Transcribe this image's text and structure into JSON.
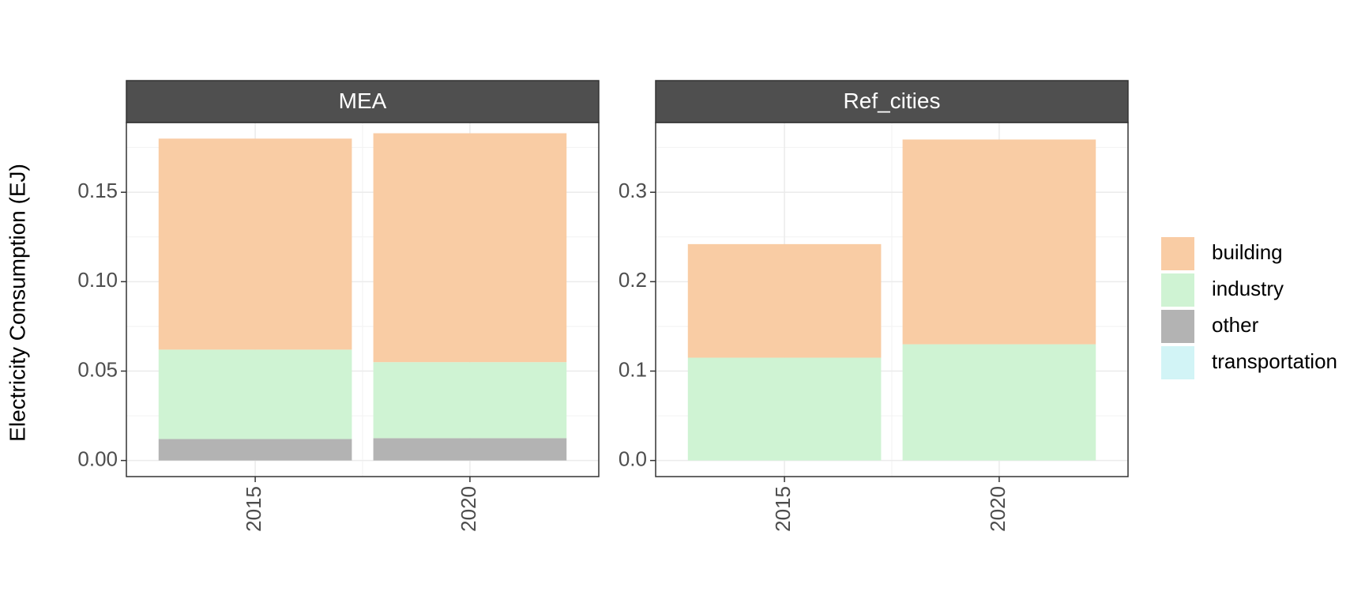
{
  "chart_data": {
    "type": "bar",
    "stacked": true,
    "ylabel": "Electricity Consumption (EJ)",
    "xlabel": "",
    "categories": [
      "2015",
      "2020"
    ],
    "legend": {
      "placement": "right",
      "entries": [
        {
          "name": "building",
          "color": "#f9cca4"
        },
        {
          "name": "industry",
          "color": "#cff3d3"
        },
        {
          "name": "other",
          "color": "#b3b3b3"
        },
        {
          "name": "transportation",
          "color": "#d2f4f6"
        }
      ]
    },
    "panels": [
      {
        "title": "MEA",
        "ylim": [
          -0.009,
          0.189
        ],
        "yticks": [
          0.0,
          0.05,
          0.1,
          0.15
        ],
        "ytick_labels": [
          "0.00",
          "0.05",
          "0.10",
          "0.15"
        ],
        "series": [
          {
            "name": "other",
            "values": [
              0.012,
              0.0125
            ]
          },
          {
            "name": "industry",
            "values": [
              0.05,
              0.0425
            ]
          },
          {
            "name": "building",
            "values": [
              0.118,
              0.128
            ]
          },
          {
            "name": "transportation",
            "values": [
              0.0,
              0.0
            ]
          }
        ]
      },
      {
        "title": "Ref_cities",
        "ylim": [
          -0.018,
          0.378
        ],
        "yticks": [
          0.0,
          0.1,
          0.2,
          0.3
        ],
        "ytick_labels": [
          "0.0",
          "0.1",
          "0.2",
          "0.3"
        ],
        "series": [
          {
            "name": "other",
            "values": [
              0.0,
              0.0
            ]
          },
          {
            "name": "industry",
            "values": [
              0.115,
              0.13
            ]
          },
          {
            "name": "building",
            "values": [
              0.127,
              0.229
            ]
          },
          {
            "name": "transportation",
            "values": [
              0.0,
              0.0
            ]
          }
        ]
      }
    ],
    "grid": true
  }
}
